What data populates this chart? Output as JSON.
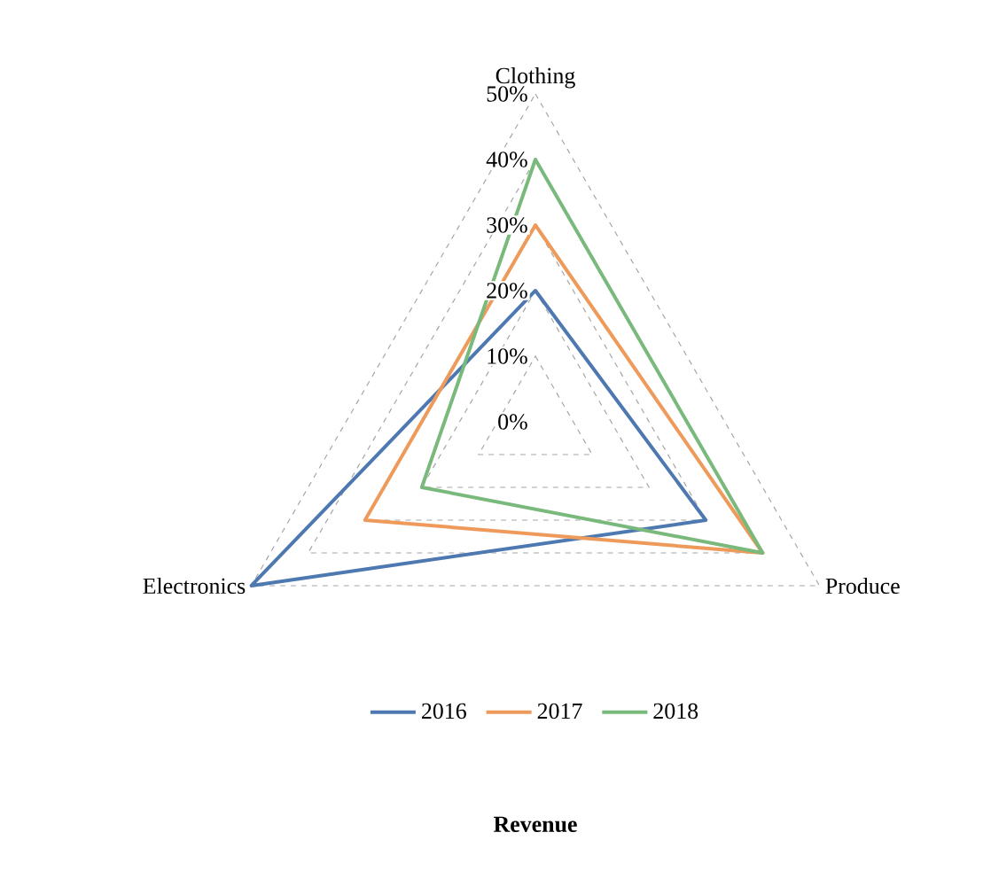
{
  "chart_data": {
    "type": "radar",
    "title": "Revenue",
    "categories": [
      "Clothing",
      "Produce",
      "Electronics"
    ],
    "series": [
      {
        "name": "2016",
        "color": "#4e79b0",
        "values": [
          20,
          30,
          50
        ]
      },
      {
        "name": "2017",
        "color": "#ed9a5b",
        "values": [
          30,
          40,
          30
        ]
      },
      {
        "name": "2018",
        "color": "#79b97c",
        "values": [
          40,
          40,
          20
        ]
      }
    ],
    "ylim": [
      0,
      50
    ],
    "yticks": [
      {
        "value": 0,
        "label": "0%"
      },
      {
        "value": 10,
        "label": "10%"
      },
      {
        "value": 20,
        "label": "20%"
      },
      {
        "value": 30,
        "label": "30%"
      },
      {
        "value": 40,
        "label": "40%"
      },
      {
        "value": 50,
        "label": "50%"
      }
    ],
    "grid": true,
    "legend": "bottom",
    "line_style": "solid",
    "marker": "none"
  }
}
